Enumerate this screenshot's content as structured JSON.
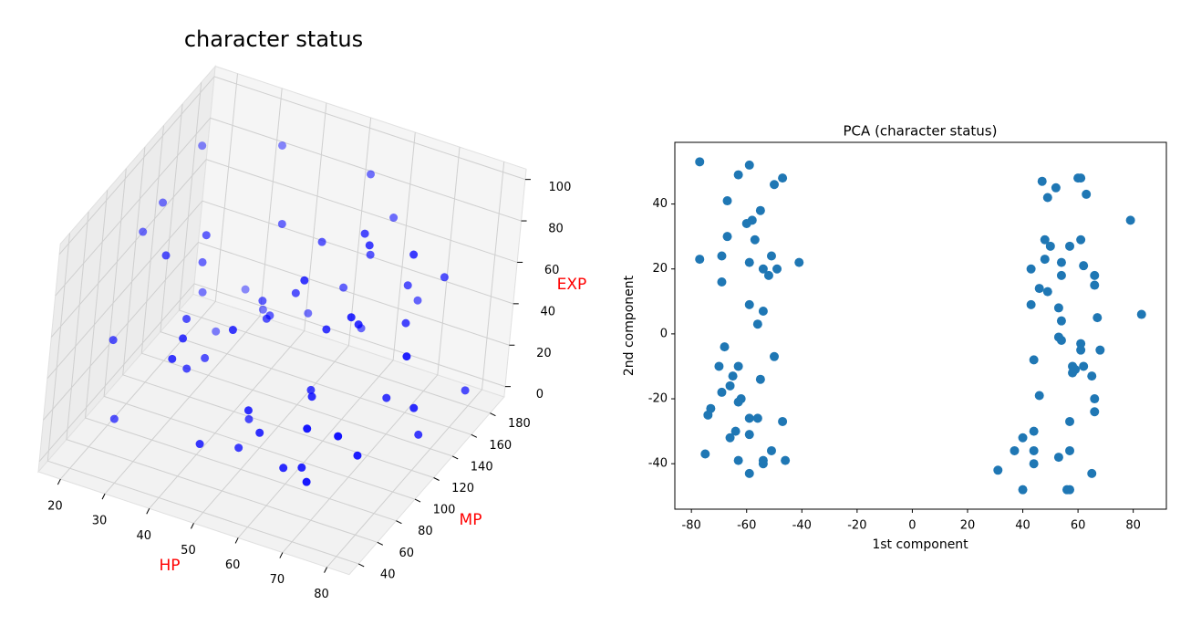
{
  "chart_data": [
    {
      "type": "scatter3d",
      "title": "character status",
      "xlabel": "HP",
      "ylabel": "MP",
      "zlabel": "EXP",
      "label_color": "#ff0000",
      "color": "#0000ff",
      "xlim": [
        15,
        85
      ],
      "ylim": [
        30,
        195
      ],
      "zlim": [
        -5,
        105
      ],
      "xticks": [
        20,
        30,
        40,
        50,
        60,
        70,
        80
      ],
      "yticks": [
        40,
        60,
        80,
        100,
        120,
        140,
        160,
        180
      ],
      "zticks": [
        0,
        20,
        40,
        60,
        80,
        100
      ],
      "x": [
        22,
        25,
        30,
        34,
        38,
        41,
        45,
        47,
        50,
        52,
        55,
        58,
        60,
        63,
        66,
        68,
        70,
        73,
        76,
        80,
        20,
        27,
        31,
        36,
        40,
        43,
        48,
        53,
        57,
        61,
        64,
        67,
        71,
        74,
        78,
        82,
        24,
        29,
        33,
        37,
        42,
        46,
        51,
        54,
        59,
        62,
        65,
        69,
        72,
        77,
        21,
        28,
        35,
        44,
        49,
        56,
        63,
        70,
        75,
        81
      ],
      "y": [
        150,
        60,
        120,
        180,
        90,
        45,
        170,
        110,
        75,
        140,
        55,
        190,
        100,
        130,
        65,
        160,
        85,
        120,
        50,
        175,
        100,
        140,
        70,
        165,
        40,
        125,
        95,
        185,
        60,
        150,
        80,
        115,
        45,
        170,
        135,
        90,
        55,
        180,
        105,
        75,
        145,
        50,
        120,
        160,
        85,
        65,
        190,
        100,
        140,
        70,
        115,
        155,
        80,
        130,
        60,
        175,
        95,
        45,
        125,
        110
      ],
      "z": [
        95,
        12,
        60,
        88,
        35,
        70,
        20,
        50,
        8,
        75,
        40,
        65,
        30,
        92,
        15,
        55,
        80,
        25,
        45,
        5,
        78,
        33,
        90,
        18,
        62,
        48,
        10,
        85,
        28,
        70,
        40,
        97,
        22,
        58,
        3,
        67,
        52,
        15,
        83,
        37,
        74,
        20,
        60,
        44,
        90,
        12,
        30,
        68,
        50,
        26,
        85,
        7,
        57,
        39,
        72,
        18,
        64,
        47,
        93,
        31
      ]
    },
    {
      "type": "scatter",
      "title": "PCA (character status)",
      "xlabel": "1st component",
      "ylabel": "2nd component",
      "color": "#1f77b4",
      "xlim": [
        -86,
        92
      ],
      "ylim": [
        -54,
        59
      ],
      "xticks": [
        -80,
        -60,
        -40,
        -20,
        0,
        20,
        40,
        60,
        80
      ],
      "yticks": [
        -40,
        -20,
        0,
        20,
        40
      ],
      "x": [
        -77,
        -77,
        -63,
        -59,
        -47,
        -50,
        -67,
        -55,
        -58,
        -60,
        -67,
        -57,
        -69,
        -51,
        -41,
        -59,
        -54,
        -49,
        -52,
        -69,
        -59,
        -54,
        -56,
        -68,
        -50,
        -63,
        -70,
        -55,
        -65,
        -62,
        -63,
        -66,
        -69,
        -73,
        -74,
        -59,
        -56,
        -47,
        -64,
        -59,
        -66,
        -51,
        -75,
        -54,
        -54,
        -46,
        -63,
        -59,
        47,
        60,
        61,
        52,
        63,
        49,
        79,
        61,
        48,
        50,
        57,
        48,
        54,
        43,
        62,
        54,
        66,
        66,
        46,
        49,
        53,
        43,
        67,
        83,
        54,
        53,
        54,
        61,
        61,
        68,
        44,
        58,
        59,
        62,
        58,
        65,
        46,
        66,
        66,
        57,
        44,
        40,
        37,
        44,
        57,
        53,
        31,
        44,
        65,
        40,
        56,
        57
      ],
      "y": [
        53,
        23,
        49,
        52,
        48,
        46,
        41,
        38,
        35,
        34,
        30,
        29,
        24,
        24,
        22,
        22,
        20,
        20,
        18,
        16,
        9,
        7,
        3,
        -4,
        -7,
        -10,
        -10,
        -14,
        -13,
        -20,
        -21,
        -16,
        -18,
        -23,
        -25,
        -26,
        -26,
        -27,
        -30,
        -31,
        -32,
        -36,
        -37,
        -40,
        -39,
        -39,
        -39,
        -43,
        47,
        48,
        48,
        45,
        43,
        42,
        35,
        29,
        29,
        27,
        27,
        23,
        22,
        20,
        21,
        18,
        18,
        15,
        14,
        13,
        8,
        9,
        5,
        6,
        4,
        -1,
        -2,
        -3,
        -5,
        -5,
        -8,
        -10,
        -11,
        -10,
        -12,
        -13,
        -19,
        -20,
        -24,
        -27,
        -30,
        -32,
        -36,
        -36,
        -36,
        -38,
        -42,
        -40,
        -43,
        -48,
        -48,
        -48
      ]
    }
  ]
}
